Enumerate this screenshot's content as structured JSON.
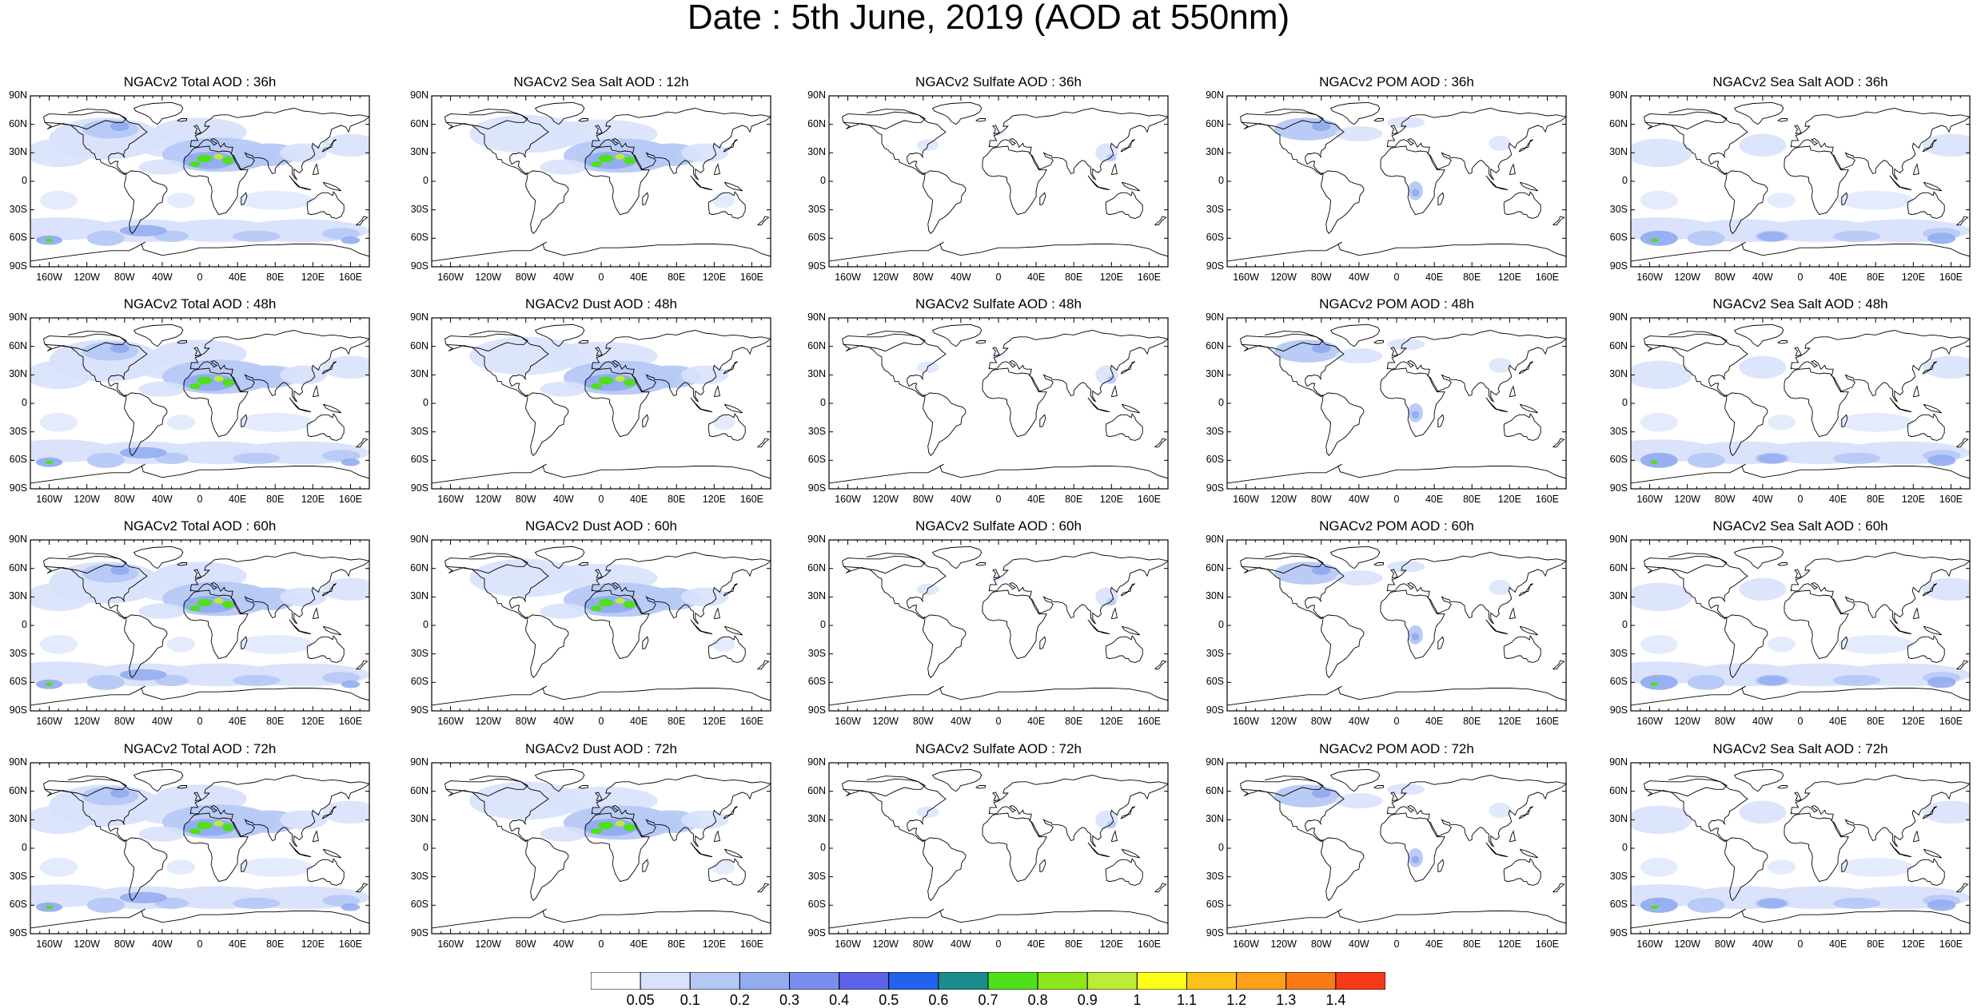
{
  "title": "Date : 5th June, 2019 (AOD at 550nm)",
  "lat_ticks": [
    "90N",
    "60N",
    "30N",
    "0",
    "30S",
    "60S",
    "90S"
  ],
  "lon_ticks": [
    "160W",
    "120W",
    "80W",
    "40W",
    "0",
    "40E",
    "80E",
    "120E",
    "160E"
  ],
  "panels": [
    {
      "title": "NGACv2 Total AOD : 36h"
    },
    {
      "title": "NGACv2 Sea Salt  AOD : 12h"
    },
    {
      "title": "NGACv2 Sulfate AOD : 36h"
    },
    {
      "title": "NGACv2 POM AOD : 36h"
    },
    {
      "title": "NGACv2 Sea Salt AOD : 36h"
    },
    {
      "title": "NGACv2 Total AOD : 48h"
    },
    {
      "title": "NGACv2 Dust AOD : 48h"
    },
    {
      "title": "NGACv2 Sulfate AOD : 48h"
    },
    {
      "title": "NGACv2 POM AOD : 48h"
    },
    {
      "title": "NGACv2 Sea Salt AOD : 48h"
    },
    {
      "title": "NGACv2 Total AOD : 60h"
    },
    {
      "title": "NGACv2 Dust AOD : 60h"
    },
    {
      "title": "NGACv2 Sulfate AOD : 60h"
    },
    {
      "title": "NGACv2 POM AOD : 60h"
    },
    {
      "title": "NGACv2 Sea Salt AOD : 60h"
    },
    {
      "title": "NGACv2 Total AOD : 72h"
    },
    {
      "title": "NGACv2 Dust AOD : 72h"
    },
    {
      "title": "NGACv2 Sulfate AOD : 72h"
    },
    {
      "title": "NGACv2 POM AOD : 72h"
    },
    {
      "title": "NGACv2 Sea Salt  AOD : 72h"
    }
  ],
  "colorbar": {
    "labels": [
      "0.05",
      "0.1",
      "0.2",
      "0.3",
      "0.4",
      "0.5",
      "0.6",
      "0.7",
      "0.8",
      "0.9",
      "1",
      "1.1",
      "1.2",
      "1.3",
      "1.4"
    ],
    "colors": [
      "#ffffff",
      "#d8e2fb",
      "#b6c8f6",
      "#94adf1",
      "#7b8ef0",
      "#5e62e8",
      "#2262ee",
      "#1a8c8c",
      "#4fe01a",
      "#8ce61a",
      "#bcec38",
      "#fdfd1a",
      "#fdc21a",
      "#fca01a",
      "#fa7a16",
      "#f53a1a"
    ]
  }
}
